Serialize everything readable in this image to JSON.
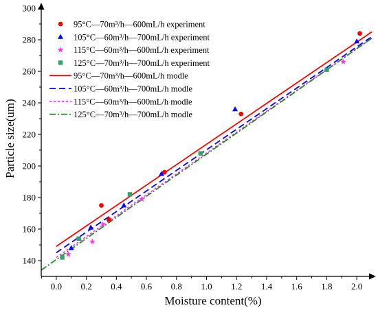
{
  "chart_data": {
    "type": "scatter",
    "xlabel": "Moisture content(%)",
    "ylabel": "Particle size(um)",
    "xlim": [
      -0.1,
      2.1
    ],
    "ylim": [
      130,
      300
    ],
    "x_ticks": [
      "0.0",
      "0.2",
      "0.4",
      "0.6",
      "0.8",
      "1.0",
      "1.2",
      "1.4",
      "1.6",
      "1.8",
      "2.0"
    ],
    "y_ticks": [
      "140",
      "160",
      "180",
      "200",
      "220",
      "240",
      "260",
      "280",
      "300"
    ],
    "legend_position": "top-left",
    "experiments": [
      {
        "name": "95°C—70m³/h—600mL/h experiment",
        "marker": "circle",
        "color": "#ff0000",
        "points": [
          [
            0.3,
            175
          ],
          [
            0.35,
            166
          ],
          [
            0.72,
            196
          ],
          [
            1.23,
            233
          ],
          [
            2.02,
            284
          ]
        ]
      },
      {
        "name": "105°C—60m³/h—700mL/h experiment",
        "marker": "triangle",
        "color": "#0000ff",
        "points": [
          [
            0.1,
            148
          ],
          [
            0.23,
            161
          ],
          [
            0.45,
            175
          ],
          [
            0.7,
            195
          ],
          [
            1.19,
            236
          ],
          [
            2.0,
            279
          ]
        ]
      },
      {
        "name": "115°C—60m³/h—600mL/h experiment",
        "marker": "star",
        "color": "#ff33ff",
        "points": [
          [
            0.08,
            144
          ],
          [
            0.24,
            152
          ],
          [
            0.31,
            163
          ],
          [
            0.57,
            179
          ],
          [
            1.91,
            266
          ]
        ]
      },
      {
        "name": "125°C—70m³/h—700mL/h experiment",
        "marker": "square",
        "color": "#33a06e",
        "points": [
          [
            0.04,
            142
          ],
          [
            0.15,
            154
          ],
          [
            0.49,
            182
          ],
          [
            0.96,
            208
          ],
          [
            1.8,
            261
          ]
        ]
      }
    ],
    "models": [
      {
        "name": "95°C—70m³/h—600mL/h modle",
        "color": "#ff0000",
        "dash": "solid",
        "x": [
          0.0,
          2.1
        ],
        "y": [
          149,
          285
        ]
      },
      {
        "name": "105°C—60m³/h—700mL/h modle",
        "color": "#0000ff",
        "dash": "dash",
        "x": [
          0.0,
          2.1
        ],
        "y": [
          145,
          282
        ]
      },
      {
        "name": "115°C—60m³/h—600mL/h modle",
        "color": "#ff33ff",
        "dash": "dot",
        "x": [
          0.0,
          2.1
        ],
        "y": [
          142,
          281
        ]
      },
      {
        "name": "125°C—70m³/h—700mL/h modle",
        "color": "#228b22",
        "dash": "dashdot",
        "x": [
          -0.1,
          2.1
        ],
        "y": [
          134,
          281
        ]
      }
    ]
  }
}
